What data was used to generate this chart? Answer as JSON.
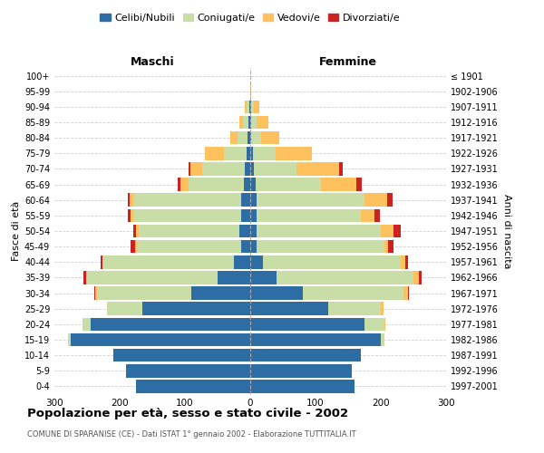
{
  "age_groups": [
    "0-4",
    "5-9",
    "10-14",
    "15-19",
    "20-24",
    "25-29",
    "30-34",
    "35-39",
    "40-44",
    "45-49",
    "50-54",
    "55-59",
    "60-64",
    "65-69",
    "70-74",
    "75-79",
    "80-84",
    "85-89",
    "90-94",
    "95-99",
    "100+"
  ],
  "birth_years": [
    "1997-2001",
    "1992-1996",
    "1987-1991",
    "1982-1986",
    "1977-1981",
    "1972-1976",
    "1967-1971",
    "1962-1966",
    "1957-1961",
    "1952-1956",
    "1947-1951",
    "1942-1946",
    "1937-1941",
    "1932-1936",
    "1927-1931",
    "1922-1926",
    "1917-1921",
    "1912-1916",
    "1907-1911",
    "1902-1906",
    "≤ 1901"
  ],
  "colors": {
    "celibi": "#2e6da4",
    "coniugati": "#c8dea6",
    "vedovi": "#ffc15e",
    "divorziati": "#cc2222"
  },
  "males": {
    "celibi": [
      175,
      190,
      210,
      275,
      245,
      165,
      90,
      50,
      25,
      14,
      16,
      14,
      14,
      10,
      8,
      5,
      4,
      3,
      2,
      0,
      0
    ],
    "coniugati": [
      0,
      0,
      0,
      4,
      12,
      55,
      145,
      200,
      200,
      160,
      155,
      165,
      165,
      85,
      65,
      35,
      15,
      8,
      4,
      0,
      0
    ],
    "vedovi": [
      0,
      0,
      0,
      0,
      0,
      0,
      2,
      2,
      2,
      2,
      4,
      4,
      6,
      12,
      18,
      30,
      12,
      5,
      2,
      0,
      0
    ],
    "divorziati": [
      0,
      0,
      0,
      0,
      0,
      0,
      2,
      4,
      2,
      8,
      4,
      4,
      2,
      4,
      4,
      0,
      0,
      0,
      0,
      0,
      0
    ]
  },
  "females": {
    "nubili": [
      160,
      155,
      170,
      200,
      175,
      120,
      80,
      40,
      20,
      10,
      10,
      10,
      10,
      8,
      6,
      4,
      2,
      2,
      2,
      0,
      0
    ],
    "coniugate": [
      0,
      0,
      0,
      5,
      30,
      80,
      155,
      210,
      210,
      195,
      190,
      160,
      165,
      100,
      65,
      35,
      14,
      8,
      4,
      0,
      0
    ],
    "vedove": [
      0,
      0,
      0,
      0,
      2,
      4,
      6,
      8,
      8,
      6,
      20,
      20,
      35,
      55,
      65,
      55,
      28,
      18,
      8,
      2,
      0
    ],
    "divorziate": [
      0,
      0,
      0,
      0,
      0,
      0,
      2,
      4,
      4,
      8,
      10,
      8,
      8,
      8,
      6,
      0,
      0,
      0,
      0,
      0,
      0
    ]
  },
  "title": "Popolazione per età, sesso e stato civile - 2002",
  "subtitle": "COMUNE DI SPARANISE (CE) - Dati ISTAT 1° gennaio 2002 - Elaborazione TUTTITALIA.IT",
  "xlabel_left": "Maschi",
  "xlabel_right": "Femmine",
  "ylabel_left": "Fasce di età",
  "ylabel_right": "Anni di nascita",
  "xlim": 300,
  "legend_labels": [
    "Celibi/Nubili",
    "Coniugati/e",
    "Vedovi/e",
    "Divorziati/e"
  ],
  "background_color": "#ffffff",
  "grid_color": "#d0d0d0"
}
